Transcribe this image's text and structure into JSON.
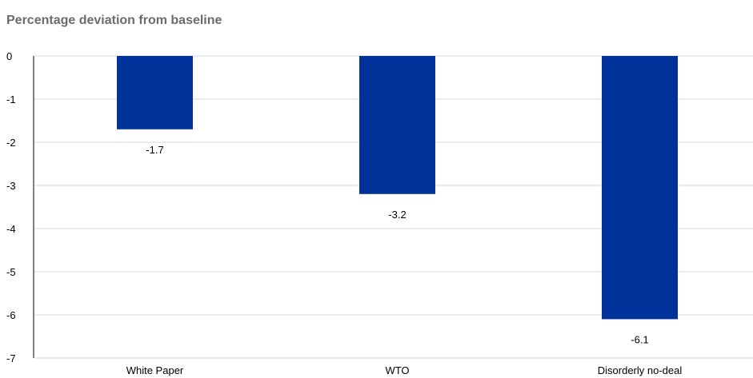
{
  "chart_data": {
    "type": "bar",
    "title": "Percentage deviation from baseline",
    "categories": [
      "White Paper",
      "WTO",
      "Disorderly no-deal"
    ],
    "values": [
      -1.7,
      -3.2,
      -6.1
    ],
    "data_labels": [
      "-1.7",
      "-3.2",
      "-6.1"
    ],
    "ylim": [
      -7,
      0
    ],
    "yticks": [
      0,
      -1,
      -2,
      -3,
      -4,
      -5,
      -6,
      -7
    ],
    "ytick_labels": [
      "0",
      "-1",
      "-2",
      "-3",
      "-4",
      "-5",
      "-6",
      "-7"
    ],
    "xlabel": "",
    "ylabel": "",
    "grid": true,
    "bar_color": "#003399",
    "grid_color": "#d9d9d9"
  }
}
